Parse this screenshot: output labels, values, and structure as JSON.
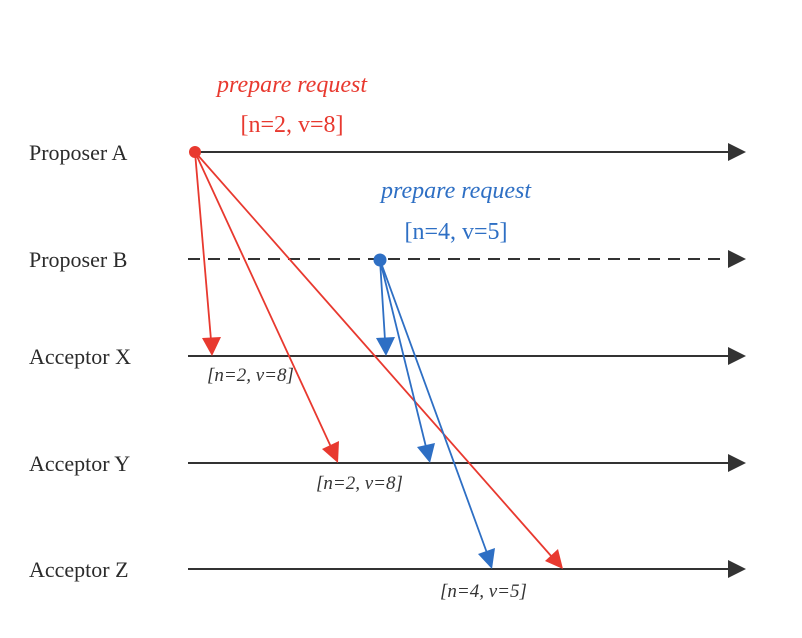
{
  "colors": {
    "line": "#333333",
    "proposer_a": "#e8392f",
    "proposer_b": "#2e6fc4",
    "text": "#2b2b2b"
  },
  "lanes": [
    {
      "id": "proposer-a",
      "label": "Proposer A"
    },
    {
      "id": "proposer-b",
      "label": "Proposer B"
    },
    {
      "id": "acceptor-x",
      "label": "Acceptor X"
    },
    {
      "id": "acceptor-y",
      "label": "Acceptor Y"
    },
    {
      "id": "acceptor-z",
      "label": "Acceptor Z"
    }
  ],
  "requests": {
    "a": {
      "title": "prepare request",
      "value": "[n=2, v=8]"
    },
    "b": {
      "title": "prepare request",
      "value": "[n=4, v=5]"
    }
  },
  "received": {
    "x": "[n=2, v=8]",
    "y": "[n=2, v=8]",
    "z": "[n=4, v=5]"
  }
}
